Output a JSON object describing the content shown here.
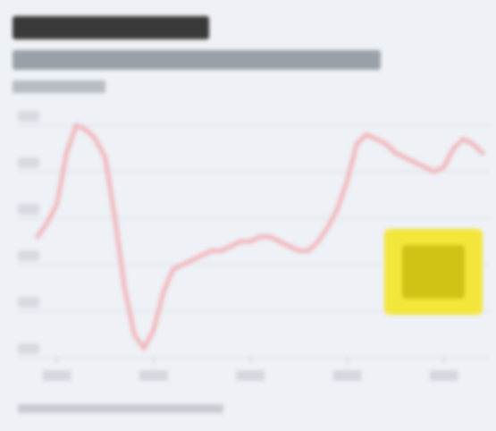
{
  "title": "",
  "subtitle": "",
  "unit": "",
  "source": "",
  "legend": {
    "label": "",
    "color": "#f3e63a"
  },
  "colors": {
    "line": "#f0b7bb",
    "grid": "#d8dde4",
    "background": "#eef1f6"
  },
  "chart_data": {
    "type": "line",
    "title": "",
    "xlabel": "",
    "ylabel": "",
    "x": [
      0,
      0.5,
      1,
      1.5,
      2,
      2.5,
      3,
      3.5,
      4,
      4.5,
      5,
      5.5,
      6,
      6.5,
      7,
      7.5,
      8,
      8.5,
      9,
      9.5,
      10,
      10.5,
      11,
      11.5,
      12,
      12.5,
      13,
      13.5,
      14,
      14.5,
      15,
      15.5,
      16,
      16.5,
      17,
      17.5,
      18,
      18.5,
      19,
      19.5,
      20,
      20.5,
      21,
      21.5,
      22,
      22.5,
      23
    ],
    "xlim": [
      0,
      23
    ],
    "ylim": [
      0,
      5
    ],
    "y_ticks": [
      0,
      1,
      2,
      3,
      4,
      5
    ],
    "x_ticks": [
      1,
      6,
      11,
      16,
      21
    ],
    "grid": true,
    "series": [
      {
        "values": [
          2.6,
          2.9,
          3.3,
          4.4,
          5.0,
          4.9,
          4.7,
          4.3,
          3.0,
          1.5,
          0.5,
          0.2,
          0.6,
          1.4,
          1.9,
          2.0,
          2.1,
          2.2,
          2.3,
          2.3,
          2.4,
          2.5,
          2.5,
          2.6,
          2.6,
          2.5,
          2.4,
          2.3,
          2.3,
          2.5,
          2.8,
          3.2,
          3.8,
          4.6,
          4.8,
          4.7,
          4.6,
          4.4,
          4.3,
          4.2,
          4.1,
          4.0,
          4.1,
          4.5,
          4.7,
          4.6,
          4.4
        ]
      }
    ]
  }
}
